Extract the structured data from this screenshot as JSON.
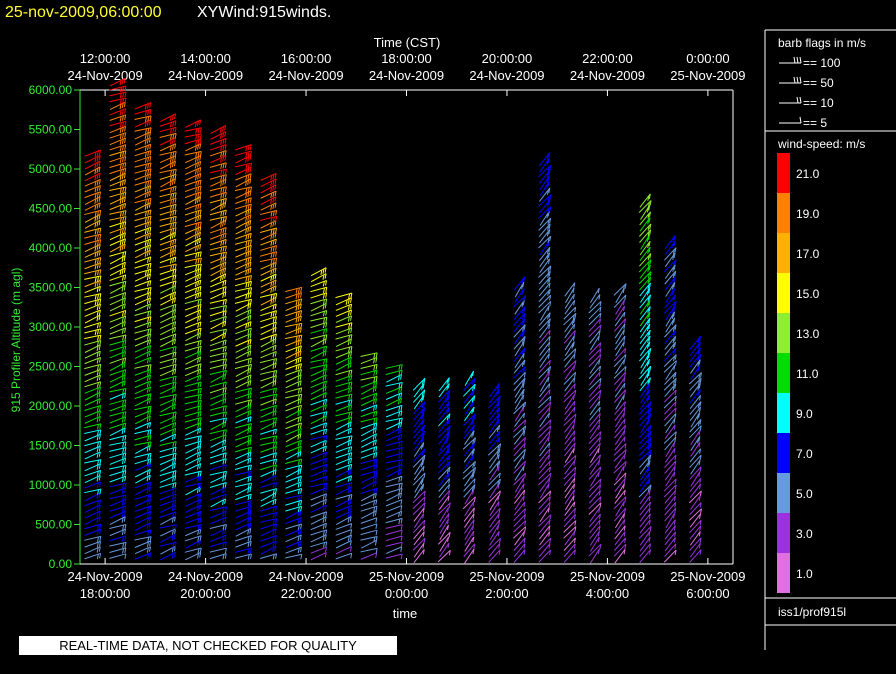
{
  "header": {
    "datetime": "25-nov-2009,06:00:00",
    "product": "XYWind:915winds.",
    "datetime_color": "#ffff33",
    "product_color": "#ffffff"
  },
  "legend_barbs": {
    "title": "barb flags in m/s",
    "items": [
      {
        "label": "== 100"
      },
      {
        "label": "== 50"
      },
      {
        "label": "== 10"
      },
      {
        "label": "== 5"
      }
    ]
  },
  "legend_colors": {
    "title": "wind-speed: m/s",
    "items": [
      {
        "label": "21.0",
        "color": "#ff0000"
      },
      {
        "label": "19.0",
        "color": "#ff8000"
      },
      {
        "label": "17.0",
        "color": "#ffb000"
      },
      {
        "label": "15.0",
        "color": "#ffff00"
      },
      {
        "label": "13.0",
        "color": "#90ee30"
      },
      {
        "label": "11.0",
        "color": "#00dd00"
      },
      {
        "label": "9.0",
        "color": "#00ffff"
      },
      {
        "label": "7.0",
        "color": "#0000ff"
      },
      {
        "label": "5.0",
        "color": "#6699dd"
      },
      {
        "label": "3.0",
        "color": "#9933dd"
      },
      {
        "label": "1.0",
        "color": "#e070e0"
      }
    ]
  },
  "station": "iss1/prof915l",
  "footer": {
    "qc_note": "REAL-TIME DATA, NOT CHECKED FOR QUALITY"
  },
  "chart_data": {
    "type": "wind-barb",
    "top_axis": {
      "title": "Time (CST)",
      "ticks": [
        {
          "time": "12:00:00",
          "date": "24-Nov-2009"
        },
        {
          "time": "14:00:00",
          "date": "24-Nov-2009"
        },
        {
          "time": "16:00:00",
          "date": "24-Nov-2009"
        },
        {
          "time": "18:00:00",
          "date": "24-Nov-2009"
        },
        {
          "time": "20:00:00",
          "date": "24-Nov-2009"
        },
        {
          "time": "22:00:00",
          "date": "24-Nov-2009"
        },
        {
          "time": "0:00:00",
          "date": "25-Nov-2009"
        }
      ]
    },
    "bottom_axis": {
      "title": "time",
      "ticks": [
        {
          "date": "24-Nov-2009",
          "time": "18:00:00"
        },
        {
          "date": "24-Nov-2009",
          "time": "20:00:00"
        },
        {
          "date": "24-Nov-2009",
          "time": "22:00:00"
        },
        {
          "date": "25-Nov-2009",
          "time": "0:00:00"
        },
        {
          "date": "25-Nov-2009",
          "time": "2:00:00"
        },
        {
          "date": "25-Nov-2009",
          "time": "4:00:00"
        },
        {
          "date": "25-Nov-2009",
          "time": "6:00:00"
        }
      ]
    },
    "x_range_utc": [
      "2009-11-24T17:30:00Z",
      "2009-11-25T06:30:00Z"
    ],
    "y_axis": {
      "title": "915 Profiler Altitude (m agl)",
      "ylim": [
        0,
        6000
      ],
      "ticks": [
        "0.00",
        "500.00",
        "1000.00",
        "1500.00",
        "2000.00",
        "2500.00",
        "3000.00",
        "3500.00",
        "4000.00",
        "4500.00",
        "5000.00",
        "5500.00",
        "6000.00"
      ],
      "tick_color": "#33ee33"
    },
    "profiles": [
      {
        "time_utc": "2009-11-24T17:45:00Z",
        "top_m": 5200,
        "max_speed": 21
      },
      {
        "time_utc": "2009-11-24T18:15:00Z",
        "top_m": 6100,
        "max_speed": 21
      },
      {
        "time_utc": "2009-11-24T18:45:00Z",
        "top_m": 5850,
        "max_speed": 21
      },
      {
        "time_utc": "2009-11-24T19:15:00Z",
        "top_m": 5700,
        "max_speed": 21
      },
      {
        "time_utc": "2009-11-24T19:45:00Z",
        "top_m": 5600,
        "max_speed": 21
      },
      {
        "time_utc": "2009-11-24T20:15:00Z",
        "top_m": 5550,
        "max_speed": 21
      },
      {
        "time_utc": "2009-11-24T20:45:00Z",
        "top_m": 5300,
        "max_speed": 21
      },
      {
        "time_utc": "2009-11-24T21:15:00Z",
        "top_m": 4950,
        "max_speed": 21
      },
      {
        "time_utc": "2009-11-24T21:45:00Z",
        "top_m": 3500,
        "max_speed": 19
      },
      {
        "time_utc": "2009-11-24T22:15:00Z",
        "top_m": 3750,
        "max_speed": 15
      },
      {
        "time_utc": "2009-11-24T22:45:00Z",
        "top_m": 3400,
        "max_speed": 15
      },
      {
        "time_utc": "2009-11-24T23:15:00Z",
        "top_m": 2700,
        "max_speed": 13
      },
      {
        "time_utc": "2009-11-24T23:45:00Z",
        "top_m": 2500,
        "max_speed": 11
      },
      {
        "time_utc": "2009-11-25T00:15:00Z",
        "top_m": 2300,
        "max_speed": 9
      },
      {
        "time_utc": "2009-11-25T00:45:00Z",
        "top_m": 2300,
        "max_speed": 9
      },
      {
        "time_utc": "2009-11-25T01:15:00Z",
        "top_m": 2400,
        "max_speed": 9
      },
      {
        "time_utc": "2009-11-25T01:45:00Z",
        "top_m": 2200,
        "max_speed": 7
      },
      {
        "time_utc": "2009-11-25T02:15:00Z",
        "top_m": 3600,
        "max_speed": 7
      },
      {
        "time_utc": "2009-11-25T02:45:00Z",
        "top_m": 5150,
        "max_speed": 7
      },
      {
        "time_utc": "2009-11-25T03:15:00Z",
        "top_m": 3500,
        "max_speed": 5
      },
      {
        "time_utc": "2009-11-25T03:45:00Z",
        "top_m": 3450,
        "max_speed": 5
      },
      {
        "time_utc": "2009-11-25T04:15:00Z",
        "top_m": 3500,
        "max_speed": 5
      },
      {
        "time_utc": "2009-11-25T04:45:00Z",
        "top_m": 4600,
        "max_speed": 13
      },
      {
        "time_utc": "2009-11-25T05:15:00Z",
        "top_m": 4100,
        "max_speed": 7
      },
      {
        "time_utc": "2009-11-25T05:45:00Z",
        "top_m": 2850,
        "max_speed": 7
      }
    ]
  }
}
